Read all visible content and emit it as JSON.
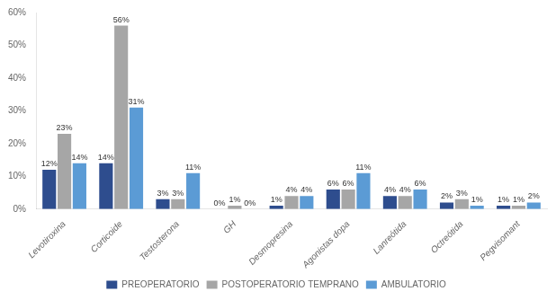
{
  "chart_data": {
    "type": "bar",
    "categories": [
      "Levotiroxina",
      "Corticoide",
      "Testosterona",
      "GH",
      "Desmopresina",
      "Agonistas dopa",
      "Lanreótida",
      "Octreótida",
      "Pegvisomant"
    ],
    "series": [
      {
        "name": "PREOPERATORIO",
        "color": "#2e4d8e",
        "values": [
          12,
          14,
          3,
          0,
          1,
          6,
          4,
          2,
          1
        ],
        "value_labels": [
          "12%",
          "14%",
          "3%",
          "0%",
          "1%",
          "6%",
          "4%",
          "2%",
          "1%"
        ]
      },
      {
        "name": "POSTOPERATORIO TEMPRANO",
        "color": "#a6a6a6",
        "values": [
          23,
          56,
          3,
          1,
          4,
          6,
          4,
          3,
          1
        ],
        "value_labels": [
          "23%",
          "56%",
          "3%",
          "1%",
          "4%",
          "6%",
          "4%",
          "3%",
          "1%"
        ]
      },
      {
        "name": "AMBULATORIO",
        "color": "#5b9bd5",
        "values": [
          14,
          31,
          11,
          0,
          4,
          11,
          6,
          1,
          2
        ],
        "value_labels": [
          "14%",
          "31%",
          "11%",
          "0%",
          "4%",
          "11%",
          "6%",
          "1%",
          "2%"
        ]
      }
    ],
    "ylim": [
      0,
      60
    ],
    "yticks": [
      {
        "value": 0,
        "label": "0%"
      },
      {
        "value": 10,
        "label": "10%"
      },
      {
        "value": 20,
        "label": "20%"
      },
      {
        "value": 30,
        "label": "30%"
      },
      {
        "value": 40,
        "label": "40%"
      },
      {
        "value": 50,
        "label": "50%"
      },
      {
        "value": 60,
        "label": "60%"
      }
    ],
    "grid": false,
    "legend": "bottom",
    "data_labels": true
  }
}
